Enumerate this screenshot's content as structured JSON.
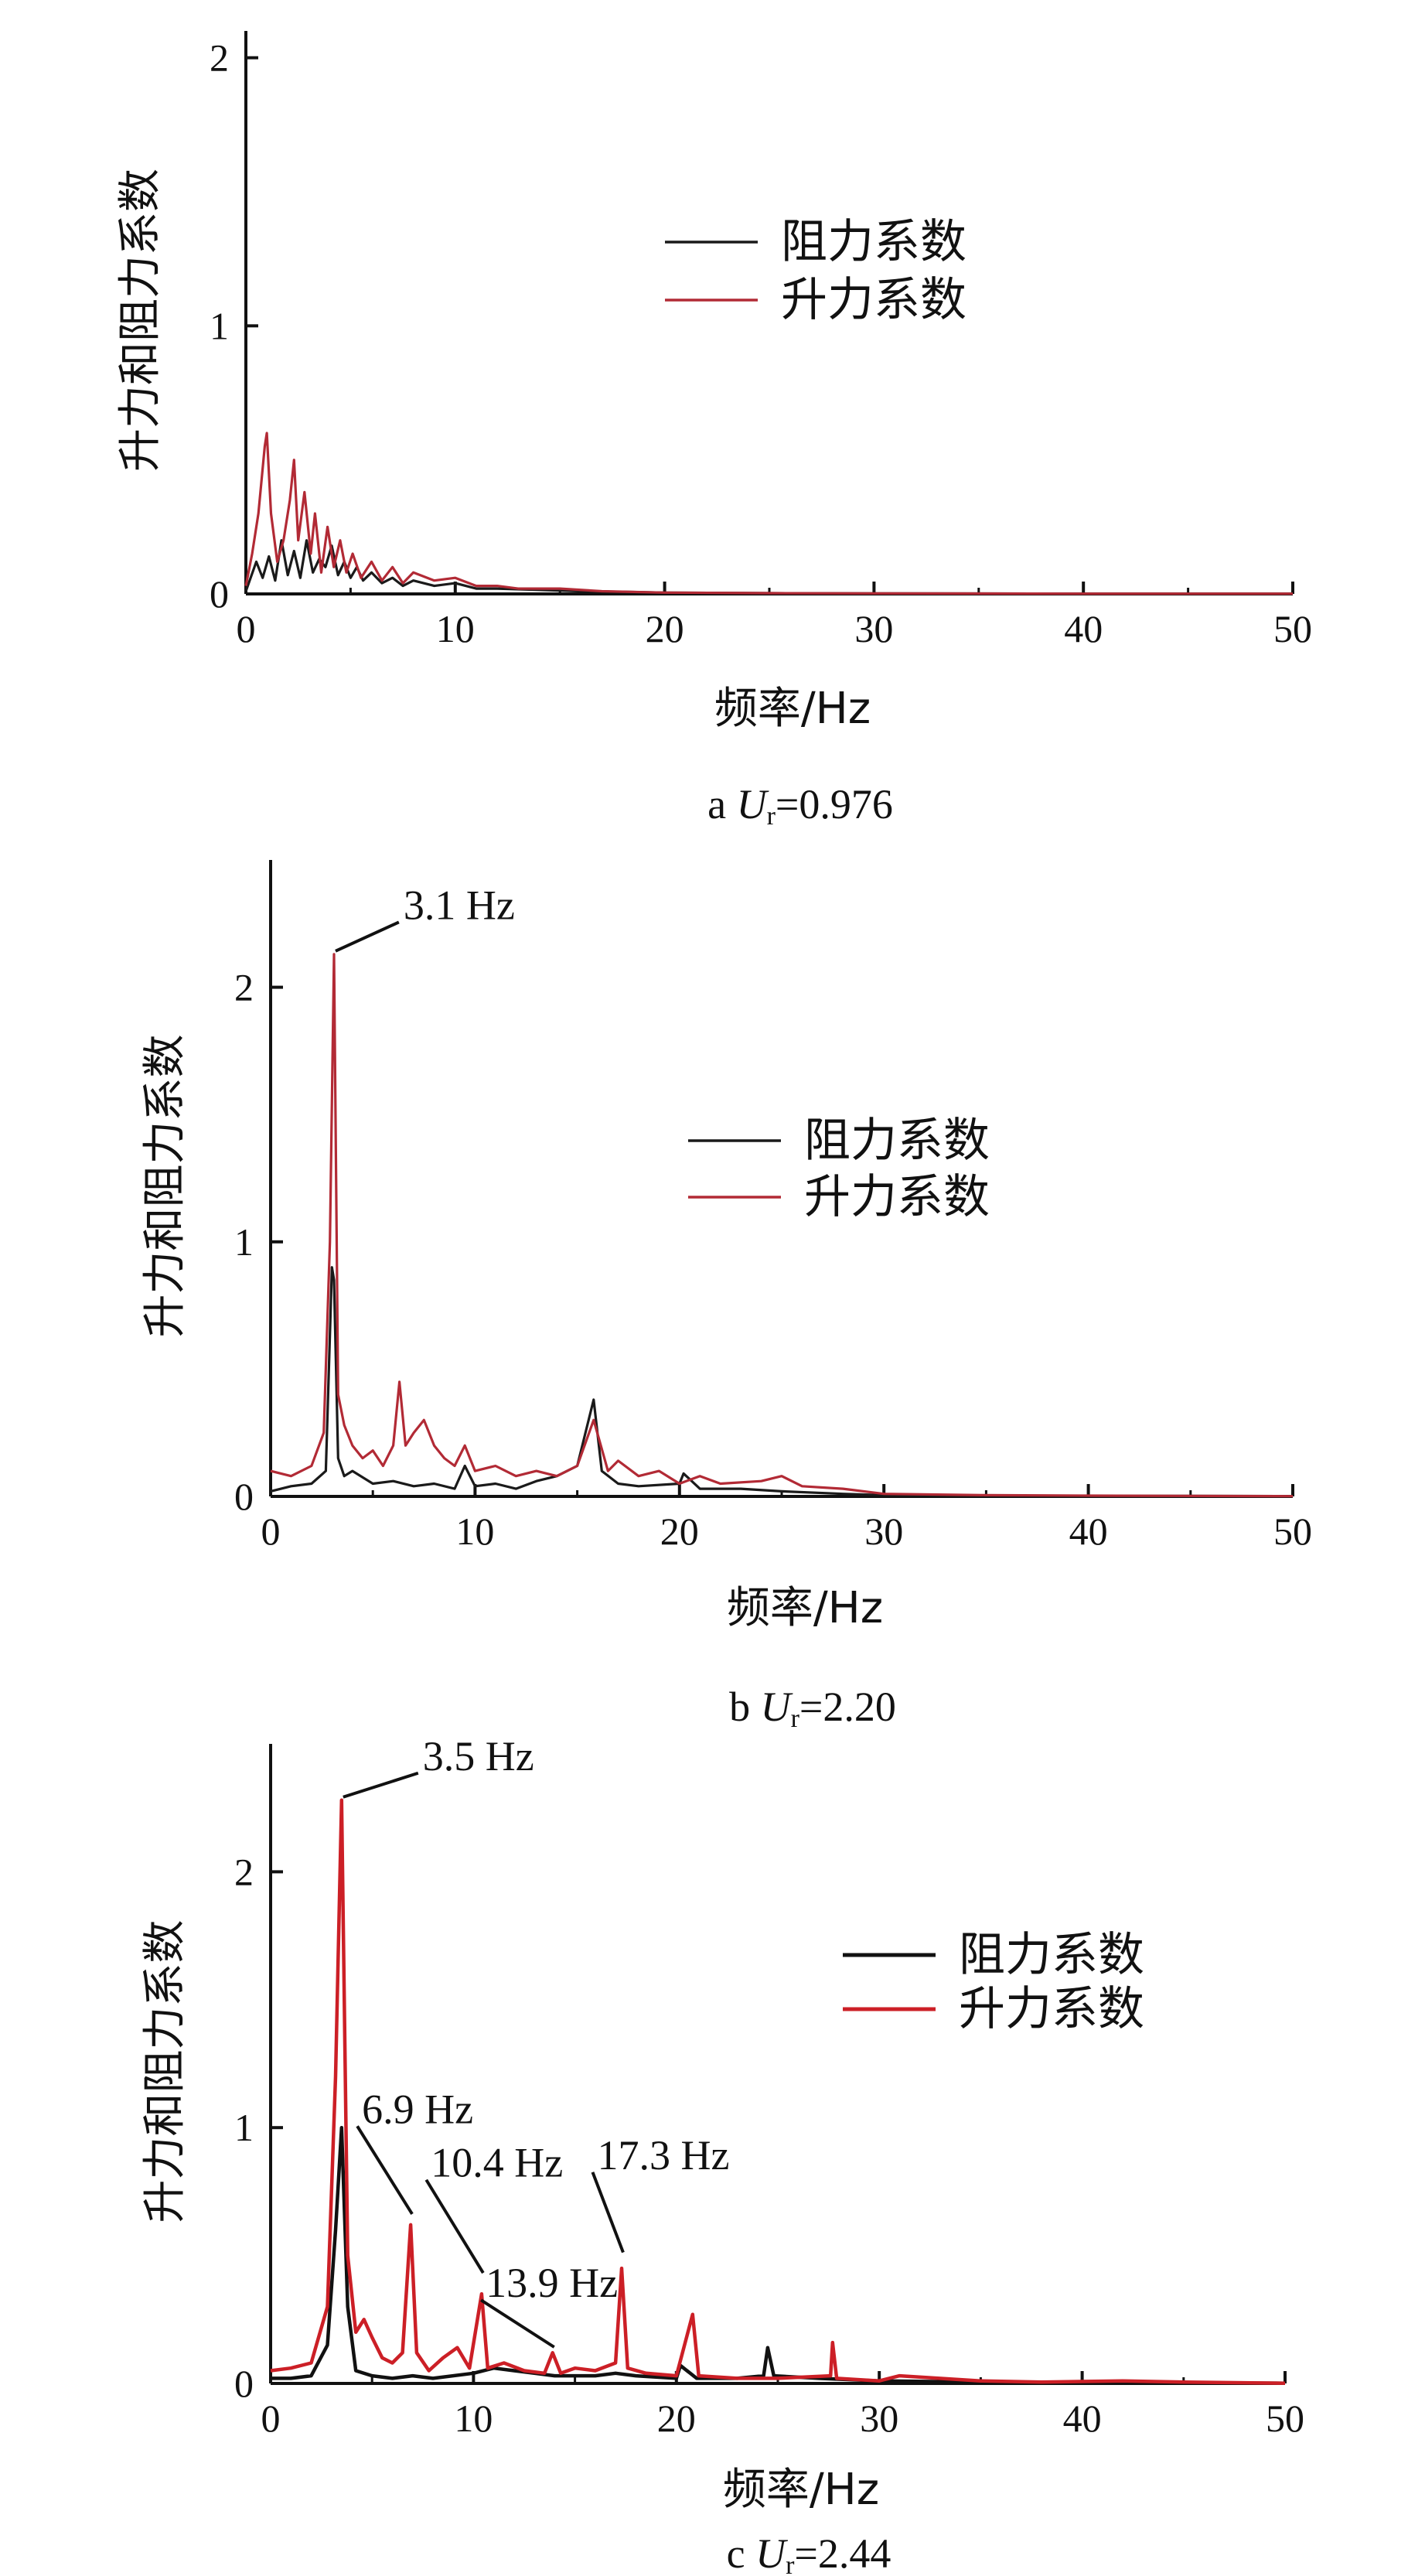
{
  "chart_data": [
    {
      "type": "line",
      "caption": {
        "letter": "a",
        "var": "U",
        "sub": "r",
        "rest": "=0.976"
      },
      "xlabel": "频率/Hz",
      "ylabel": "升力和阻力系数",
      "xlim": [
        0,
        50
      ],
      "ylim": [
        0,
        2.1
      ],
      "xticks": [
        0,
        10,
        20,
        30,
        40,
        50
      ],
      "yticks": [
        0,
        1,
        2
      ],
      "legend_position": "center",
      "annotations": [],
      "series": [
        {
          "name": "阻力系数",
          "color": "#1a1a1a",
          "points": [
            [
              0,
              0.01
            ],
            [
              0.5,
              0.12
            ],
            [
              0.8,
              0.06
            ],
            [
              1.1,
              0.14
            ],
            [
              1.4,
              0.05
            ],
            [
              1.7,
              0.2
            ],
            [
              2.0,
              0.07
            ],
            [
              2.3,
              0.16
            ],
            [
              2.6,
              0.06
            ],
            [
              2.9,
              0.2
            ],
            [
              3.2,
              0.08
            ],
            [
              3.5,
              0.13
            ],
            [
              3.8,
              0.1
            ],
            [
              4.1,
              0.18
            ],
            [
              4.4,
              0.07
            ],
            [
              4.7,
              0.12
            ],
            [
              5.0,
              0.06
            ],
            [
              5.3,
              0.1
            ],
            [
              5.6,
              0.05
            ],
            [
              6.0,
              0.08
            ],
            [
              6.5,
              0.04
            ],
            [
              7.0,
              0.06
            ],
            [
              7.5,
              0.03
            ],
            [
              8.0,
              0.05
            ],
            [
              9.0,
              0.03
            ],
            [
              10,
              0.04
            ],
            [
              11,
              0.02
            ],
            [
              12,
              0.02
            ],
            [
              14,
              0.015
            ],
            [
              16,
              0.01
            ],
            [
              18,
              0.008
            ],
            [
              20,
              0.005
            ],
            [
              25,
              0.003
            ],
            [
              30,
              0.002
            ],
            [
              40,
              0.001
            ],
            [
              50,
              0.001
            ]
          ]
        },
        {
          "name": "升力系数",
          "color": "#b22a35",
          "points": [
            [
              0,
              0.03
            ],
            [
              0.3,
              0.15
            ],
            [
              0.6,
              0.3
            ],
            [
              0.9,
              0.55
            ],
            [
              1.0,
              0.6
            ],
            [
              1.2,
              0.3
            ],
            [
              1.5,
              0.12
            ],
            [
              1.8,
              0.2
            ],
            [
              2.1,
              0.35
            ],
            [
              2.3,
              0.5
            ],
            [
              2.5,
              0.2
            ],
            [
              2.8,
              0.38
            ],
            [
              3.1,
              0.15
            ],
            [
              3.3,
              0.3
            ],
            [
              3.6,
              0.08
            ],
            [
              3.9,
              0.25
            ],
            [
              4.2,
              0.1
            ],
            [
              4.5,
              0.2
            ],
            [
              4.8,
              0.08
            ],
            [
              5.1,
              0.15
            ],
            [
              5.5,
              0.06
            ],
            [
              6.0,
              0.12
            ],
            [
              6.5,
              0.05
            ],
            [
              7.0,
              0.1
            ],
            [
              7.5,
              0.04
            ],
            [
              8.0,
              0.08
            ],
            [
              9.0,
              0.05
            ],
            [
              10,
              0.06
            ],
            [
              11,
              0.03
            ],
            [
              12,
              0.03
            ],
            [
              13,
              0.02
            ],
            [
              15,
              0.02
            ],
            [
              17,
              0.01
            ],
            [
              20,
              0.005
            ],
            [
              25,
              0.003
            ],
            [
              30,
              0.002
            ],
            [
              40,
              0.001
            ],
            [
              50,
              0.001
            ]
          ]
        }
      ]
    },
    {
      "type": "line",
      "caption": {
        "letter": "b",
        "var": "U",
        "sub": "r",
        "rest": "=2.20"
      },
      "xlabel": "频率/Hz",
      "ylabel": "升力和阻力系数",
      "xlim": [
        0,
        50
      ],
      "ylim": [
        0,
        2.5
      ],
      "xticks": [
        0,
        10,
        20,
        30,
        40,
        50
      ],
      "yticks": [
        0,
        1,
        2
      ],
      "legend_position": "center",
      "annotations": [
        {
          "text": "3.1 Hz",
          "x": 3.1,
          "y": 2.13,
          "label_x": 6.5,
          "label_y": 2.28
        }
      ],
      "series": [
        {
          "name": "阻力系数",
          "color": "#1a1a1a",
          "points": [
            [
              0,
              0.02
            ],
            [
              1,
              0.04
            ],
            [
              2,
              0.05
            ],
            [
              2.7,
              0.1
            ],
            [
              3.0,
              0.9
            ],
            [
              3.1,
              0.85
            ],
            [
              3.3,
              0.15
            ],
            [
              3.6,
              0.08
            ],
            [
              4,
              0.1
            ],
            [
              5,
              0.05
            ],
            [
              6,
              0.06
            ],
            [
              7,
              0.04
            ],
            [
              8,
              0.05
            ],
            [
              9,
              0.03
            ],
            [
              9.5,
              0.12
            ],
            [
              10,
              0.04
            ],
            [
              11,
              0.05
            ],
            [
              12,
              0.03
            ],
            [
              13,
              0.06
            ],
            [
              14,
              0.08
            ],
            [
              15,
              0.12
            ],
            [
              15.8,
              0.38
            ],
            [
              16.2,
              0.1
            ],
            [
              17,
              0.05
            ],
            [
              18,
              0.04
            ],
            [
              20,
              0.05
            ],
            [
              20.2,
              0.09
            ],
            [
              21,
              0.03
            ],
            [
              23,
              0.03
            ],
            [
              25,
              0.02
            ],
            [
              28,
              0.01
            ],
            [
              30,
              0.005
            ],
            [
              35,
              0.003
            ],
            [
              40,
              0.002
            ],
            [
              45,
              0.002
            ],
            [
              50,
              0.001
            ]
          ]
        },
        {
          "name": "升力系数",
          "color": "#b22a35",
          "points": [
            [
              0,
              0.1
            ],
            [
              1,
              0.08
            ],
            [
              2,
              0.12
            ],
            [
              2.6,
              0.25
            ],
            [
              2.9,
              1.0
            ],
            [
              3.1,
              2.13
            ],
            [
              3.3,
              0.4
            ],
            [
              3.6,
              0.28
            ],
            [
              4.0,
              0.2
            ],
            [
              4.5,
              0.15
            ],
            [
              5.0,
              0.18
            ],
            [
              5.5,
              0.12
            ],
            [
              6.0,
              0.2
            ],
            [
              6.3,
              0.45
            ],
            [
              6.6,
              0.2
            ],
            [
              7.0,
              0.25
            ],
            [
              7.5,
              0.3
            ],
            [
              8.0,
              0.2
            ],
            [
              8.5,
              0.15
            ],
            [
              9.0,
              0.12
            ],
            [
              9.5,
              0.2
            ],
            [
              10,
              0.1
            ],
            [
              11,
              0.12
            ],
            [
              12,
              0.08
            ],
            [
              13,
              0.1
            ],
            [
              14,
              0.08
            ],
            [
              15,
              0.12
            ],
            [
              15.8,
              0.3
            ],
            [
              16.5,
              0.1
            ],
            [
              17,
              0.14
            ],
            [
              18,
              0.08
            ],
            [
              19,
              0.1
            ],
            [
              20,
              0.05
            ],
            [
              21,
              0.08
            ],
            [
              22,
              0.05
            ],
            [
              24,
              0.06
            ],
            [
              25,
              0.08
            ],
            [
              26,
              0.04
            ],
            [
              28,
              0.03
            ],
            [
              30,
              0.01
            ],
            [
              35,
              0.005
            ],
            [
              40,
              0.003
            ],
            [
              50,
              0.001
            ]
          ]
        }
      ]
    },
    {
      "type": "line",
      "caption": {
        "letter": "c",
        "var": "U",
        "sub": "r",
        "rest": "=2.44"
      },
      "xlabel": "频率/Hz",
      "ylabel": "升力和阻力系数",
      "xlim": [
        0,
        50
      ],
      "ylim": [
        0,
        2.5
      ],
      "xticks": [
        0,
        10,
        20,
        30,
        40,
        50
      ],
      "yticks": [
        0,
        1,
        2
      ],
      "legend_position": "center-right",
      "annotations": [
        {
          "text": "3.5 Hz",
          "x": 3.5,
          "y": 2.28,
          "label_x": 7.5,
          "label_y": 2.41
        },
        {
          "text": "6.9 Hz",
          "x": 6.9,
          "y": 0.65,
          "label_x": 4.5,
          "label_y": 1.03
        },
        {
          "text": "10.4 Hz",
          "x": 10.4,
          "y": 0.42,
          "label_x": 7.9,
          "label_y": 0.82
        },
        {
          "text": "13.9 Hz",
          "x": 13.9,
          "y": 0.13,
          "label_x": 10.6,
          "label_y": 0.35
        },
        {
          "text": "17.3 Hz",
          "x": 17.3,
          "y": 0.5,
          "label_x": 16.1,
          "label_y": 0.85
        }
      ],
      "series": [
        {
          "name": "阻力系数",
          "color": "#111111",
          "points": [
            [
              0,
              0.02
            ],
            [
              1,
              0.02
            ],
            [
              2,
              0.03
            ],
            [
              2.8,
              0.15
            ],
            [
              3.2,
              0.6
            ],
            [
              3.5,
              1.0
            ],
            [
              3.8,
              0.3
            ],
            [
              4.2,
              0.05
            ],
            [
              5,
              0.03
            ],
            [
              6,
              0.02
            ],
            [
              7,
              0.03
            ],
            [
              8,
              0.02
            ],
            [
              10,
              0.04
            ],
            [
              11,
              0.06
            ],
            [
              12,
              0.05
            ],
            [
              13,
              0.04
            ],
            [
              14,
              0.03
            ],
            [
              15,
              0.03
            ],
            [
              16,
              0.03
            ],
            [
              17,
              0.04
            ],
            [
              18,
              0.03
            ],
            [
              20,
              0.02
            ],
            [
              20.2,
              0.07
            ],
            [
              21,
              0.02
            ],
            [
              23,
              0.02
            ],
            [
              24.3,
              0.03
            ],
            [
              24.5,
              0.14
            ],
            [
              24.8,
              0.03
            ],
            [
              27,
              0.02
            ],
            [
              30,
              0.01
            ],
            [
              35,
              0.005
            ],
            [
              40,
              0.003
            ],
            [
              50,
              0.001
            ]
          ]
        },
        {
          "name": "升力系数",
          "color": "#cc1f26",
          "points": [
            [
              0,
              0.05
            ],
            [
              1,
              0.06
            ],
            [
              2,
              0.08
            ],
            [
              2.8,
              0.3
            ],
            [
              3.2,
              1.2
            ],
            [
              3.5,
              2.28
            ],
            [
              3.8,
              0.5
            ],
            [
              4.2,
              0.2
            ],
            [
              4.6,
              0.25
            ],
            [
              5.0,
              0.18
            ],
            [
              5.5,
              0.1
            ],
            [
              6.0,
              0.08
            ],
            [
              6.5,
              0.12
            ],
            [
              6.9,
              0.62
            ],
            [
              7.2,
              0.12
            ],
            [
              7.8,
              0.05
            ],
            [
              8.5,
              0.1
            ],
            [
              9.2,
              0.14
            ],
            [
              9.8,
              0.06
            ],
            [
              10.4,
              0.35
            ],
            [
              10.7,
              0.06
            ],
            [
              11.5,
              0.08
            ],
            [
              12.5,
              0.05
            ],
            [
              13.5,
              0.04
            ],
            [
              13.9,
              0.12
            ],
            [
              14.3,
              0.04
            ],
            [
              15,
              0.06
            ],
            [
              16,
              0.05
            ],
            [
              17,
              0.08
            ],
            [
              17.3,
              0.45
            ],
            [
              17.6,
              0.06
            ],
            [
              18.5,
              0.04
            ],
            [
              20,
              0.03
            ],
            [
              20.8,
              0.27
            ],
            [
              21.1,
              0.03
            ],
            [
              23,
              0.02
            ],
            [
              25,
              0.02
            ],
            [
              27.6,
              0.03
            ],
            [
              27.7,
              0.16
            ],
            [
              27.9,
              0.02
            ],
            [
              30,
              0.01
            ],
            [
              31,
              0.03
            ],
            [
              35,
              0.01
            ],
            [
              38,
              0.005
            ],
            [
              42,
              0.01
            ],
            [
              45,
              0.005
            ],
            [
              50,
              0.001
            ]
          ]
        }
      ]
    }
  ]
}
